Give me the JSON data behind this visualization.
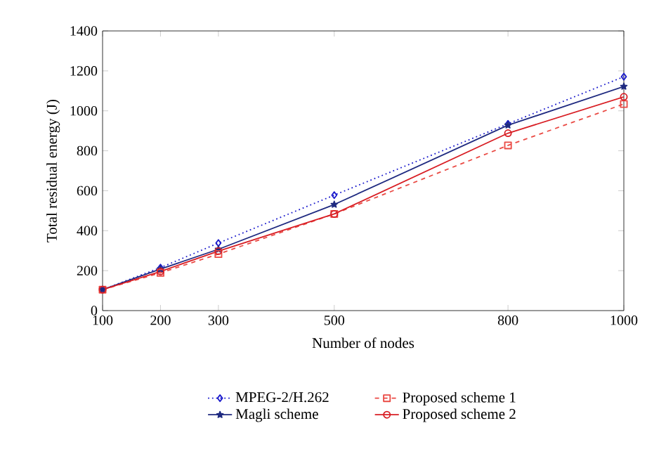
{
  "chart_data": {
    "type": "line",
    "xlabel": "Number of nodes",
    "ylabel": "Total residual energy (J)",
    "x": [
      100,
      200,
      300,
      500,
      800,
      1000
    ],
    "series": [
      {
        "name": "MPEG-2/H.262",
        "color": "#1a1acc",
        "marker": "diamond",
        "line_style": "dotted",
        "values": [
          105,
          215,
          338,
          578,
          935,
          1171
        ]
      },
      {
        "name": "Magli scheme",
        "color": "#1f2a80",
        "marker": "star",
        "line_style": "solid",
        "values": [
          105,
          208,
          307,
          531,
          928,
          1122
        ]
      },
      {
        "name": "Proposed scheme 1",
        "color": "#ea4a44",
        "marker": "square",
        "line_style": "dashed",
        "values": [
          105,
          189,
          283,
          484,
          827,
          1034
        ]
      },
      {
        "name": "Proposed scheme 2",
        "color": "#d81e24",
        "marker": "circle",
        "line_style": "solid",
        "values": [
          105,
          196,
          298,
          484,
          888,
          1070
        ]
      }
    ],
    "xlim": [
      100,
      1000
    ],
    "xticks": [
      100,
      200,
      300,
      500,
      800,
      1000
    ],
    "ylim": [
      0,
      1400
    ],
    "yticks": [
      0,
      200,
      400,
      600,
      800,
      1000,
      1200,
      1400
    ],
    "legend": "bottom",
    "grid": false
  }
}
